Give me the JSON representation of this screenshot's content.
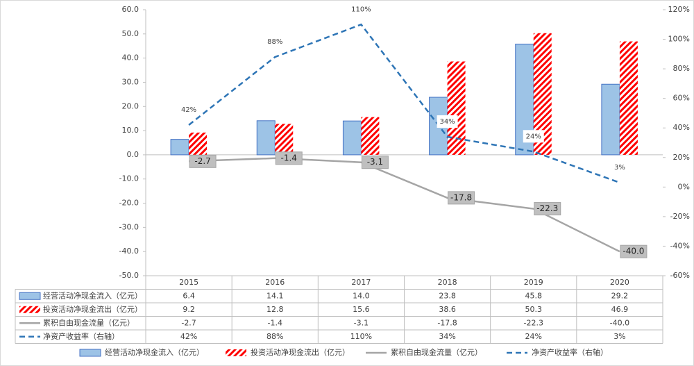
{
  "chart_data": {
    "type": "bar",
    "categories": [
      "2015",
      "2016",
      "2017",
      "2018",
      "2019",
      "2020"
    ],
    "series": [
      {
        "name": "经营活动净现金流入（亿元）",
        "type": "bar",
        "color": "#9dc3e6",
        "values": [
          6.4,
          14.1,
          14.0,
          23.8,
          45.8,
          29.2
        ],
        "value_labels": [
          "6.4",
          "14.1",
          "14.0",
          "23.8",
          "45.8",
          "29.2"
        ]
      },
      {
        "name": "投资活动净现金流出（亿元）",
        "type": "bar",
        "color": "#ff0000",
        "pattern": "hatch",
        "values": [
          9.2,
          12.8,
          15.6,
          38.6,
          50.3,
          46.9
        ],
        "value_labels": [
          "9.2",
          "12.8",
          "15.6",
          "38.6",
          "50.3",
          "46.9"
        ]
      },
      {
        "name": "累积自由现金流量（亿元）",
        "type": "line",
        "color": "#a5a5a5",
        "values": [
          -2.7,
          -1.4,
          -3.1,
          -17.8,
          -22.3,
          -40.0
        ],
        "value_labels": [
          "-2.7",
          "-1.4",
          "-3.1",
          "-17.8",
          "-22.3",
          "-40.0"
        ]
      },
      {
        "name": "净资产收益率（右轴）",
        "type": "line",
        "color": "#2e75b6",
        "dash": true,
        "axis": "y2",
        "values": [
          42,
          88,
          110,
          34,
          24,
          3
        ],
        "value_labels": [
          "42%",
          "88%",
          "110%",
          "34%",
          "24%",
          "3%"
        ]
      }
    ],
    "ylim": [
      -50,
      60
    ],
    "yticks": [
      {
        "value": 60,
        "label": "60.0"
      },
      {
        "value": 50,
        "label": "50.0"
      },
      {
        "value": 40,
        "label": "40.0"
      },
      {
        "value": 30,
        "label": "30.0"
      },
      {
        "value": 20,
        "label": "20.0"
      },
      {
        "value": 10,
        "label": "10.0"
      },
      {
        "value": 0,
        "label": "0.0"
      },
      {
        "value": -10,
        "label": "-10.0"
      },
      {
        "value": -20,
        "label": "-20.0"
      },
      {
        "value": -30,
        "label": "-30.0"
      },
      {
        "value": -40,
        "label": "-40.0"
      },
      {
        "value": -50,
        "label": "-50.0"
      }
    ],
    "y2lim": [
      -60,
      120
    ],
    "y2ticks": [
      {
        "value": 120,
        "label": "120%"
      },
      {
        "value": 100,
        "label": "100%"
      },
      {
        "value": 80,
        "label": "80%"
      },
      {
        "value": 60,
        "label": "60%"
      },
      {
        "value": 40,
        "label": "40%"
      },
      {
        "value": 20,
        "label": "20%"
      },
      {
        "value": 0,
        "label": "0%"
      },
      {
        "value": -20,
        "label": "-20%"
      },
      {
        "value": -40,
        "label": "-40%"
      },
      {
        "value": -60,
        "label": "-60%"
      }
    ]
  }
}
